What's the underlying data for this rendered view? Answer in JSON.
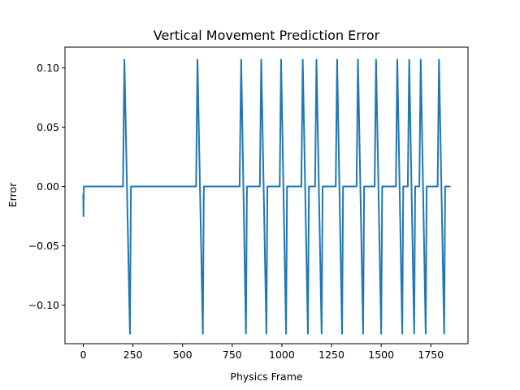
{
  "chart_data": {
    "type": "line",
    "title": "Vertical Movement Prediction Error",
    "xlabel": "Physics Frame",
    "ylabel": "Error",
    "xlim": [
      -92,
      1937
    ],
    "ylim": [
      -0.1325,
      0.1175
    ],
    "xticks": [
      0,
      250,
      500,
      750,
      1000,
      1250,
      1500,
      1750
    ],
    "xtick_labels": [
      "0",
      "250",
      "500",
      "750",
      "1000",
      "1250",
      "1500",
      "1750"
    ],
    "yticks": [
      -0.1,
      -0.05,
      0.0,
      0.05,
      0.1
    ],
    "ytick_labels": [
      "−0.10",
      "−0.05",
      "0.00",
      "0.05",
      "0.10"
    ],
    "grid": false,
    "legend": "none",
    "series": [
      {
        "color": "#1f77b4",
        "x": [
          0,
          1,
          3,
          6,
          200,
          207,
          235,
          240,
          568,
          575,
          602,
          607,
          787,
          795,
          819,
          824,
          889,
          896,
          922,
          927,
          989,
          996,
          1021,
          1026,
          1098,
          1105,
          1131,
          1136,
          1167,
          1174,
          1200,
          1205,
          1271,
          1278,
          1303,
          1308,
          1376,
          1383,
          1409,
          1414,
          1467,
          1474,
          1500,
          1505,
          1574,
          1581,
          1606,
          1611,
          1634,
          1641,
          1666,
          1671,
          1692,
          1699,
          1724,
          1729,
          1784,
          1791,
          1817,
          1822,
          1845
        ],
        "y": [
          -0.007,
          -0.025,
          0.0,
          0.0,
          0.0,
          0.107,
          -0.124,
          0.0,
          0.0,
          0.107,
          -0.124,
          0.0,
          0.0,
          0.107,
          -0.124,
          0.0,
          0.0,
          0.107,
          -0.124,
          0.0,
          0.0,
          0.107,
          -0.124,
          0.0,
          0.0,
          0.107,
          -0.124,
          0.0,
          0.0,
          0.107,
          -0.124,
          0.0,
          0.0,
          0.107,
          -0.124,
          0.0,
          0.0,
          0.107,
          -0.124,
          0.0,
          0.0,
          0.107,
          -0.124,
          0.0,
          0.0,
          0.107,
          -0.124,
          0.0,
          0.0,
          0.107,
          -0.124,
          0.0,
          0.0,
          0.107,
          -0.124,
          0.0,
          0.0,
          0.107,
          -0.124,
          0.0,
          0.0
        ]
      }
    ]
  }
}
